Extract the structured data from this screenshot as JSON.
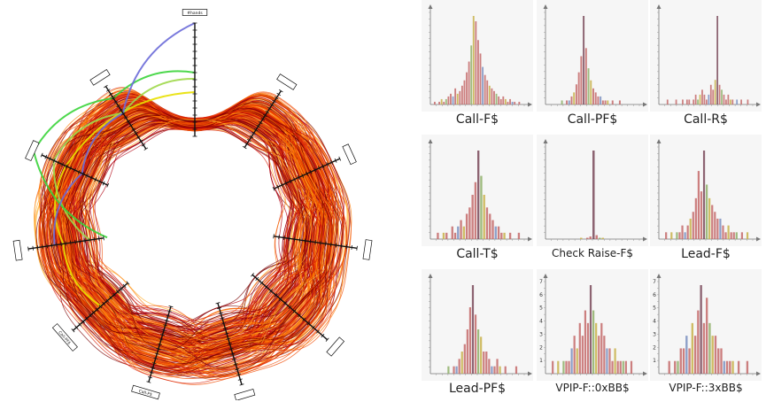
{
  "chart_data": [
    {
      "type": "parallel-coordinates-radial",
      "axes": [
        {
          "label": "#hands"
        },
        {
          "label": ""
        },
        {
          "label": ""
        },
        {
          "label": ""
        },
        {
          "label": ""
        },
        {
          "label": ""
        },
        {
          "label": "Call-F$"
        },
        {
          "label": "Call-PF$"
        },
        {
          "label": ""
        },
        {
          "label": ""
        },
        {
          "label": ""
        }
      ],
      "colors": [
        "#7a0000",
        "#b00010",
        "#d81e05",
        "#f04a00",
        "#ff7a00",
        "#ffae2a",
        "#e8e000",
        "#9fd84a",
        "#3ad43a",
        "#6a6ad8"
      ]
    },
    {
      "type": "histogram-grid",
      "bar_color": "#c46a6a",
      "accent_colors": [
        "#c8b24a",
        "#8fb06a",
        "#7a8fc0",
        "#7a4a5a"
      ],
      "panels": [
        {
          "title": "Call-F$",
          "yticks": [],
          "values": [
            1,
            0,
            1,
            2,
            1,
            2,
            3,
            4,
            3,
            6,
            4,
            5,
            7,
            9,
            12,
            16,
            22,
            33,
            31,
            24,
            19,
            14,
            11,
            9,
            7,
            6,
            5,
            4,
            3,
            2,
            3,
            2,
            1,
            2,
            1,
            1,
            0,
            1
          ]
        },
        {
          "title": "Call-PF$",
          "yticks": [],
          "values": [
            0,
            0,
            0,
            0,
            0,
            1,
            0,
            1,
            1,
            2,
            3,
            5,
            8,
            12,
            22,
            14,
            9,
            6,
            4,
            3,
            2,
            2,
            1,
            1,
            1,
            0,
            1,
            0,
            0,
            1,
            0,
            0,
            0,
            0,
            0,
            0
          ]
        },
        {
          "title": "Call-R$",
          "yticks": [],
          "values": [
            0,
            0,
            1,
            0,
            0,
            0,
            1,
            0,
            0,
            1,
            0,
            1,
            1,
            0,
            1,
            2,
            1,
            2,
            3,
            2,
            1,
            2,
            4,
            3,
            5,
            18,
            4,
            3,
            2,
            1,
            2,
            1,
            1,
            0,
            1,
            0,
            1,
            0,
            0,
            1
          ]
        },
        {
          "title": "Call-T$",
          "yticks": [],
          "values": [
            0,
            1,
            0,
            1,
            1,
            0,
            2,
            1,
            2,
            3,
            2,
            4,
            5,
            7,
            9,
            14,
            10,
            7,
            5,
            4,
            3,
            2,
            2,
            1,
            1,
            0,
            1,
            0,
            0,
            1
          ]
        },
        {
          "title": "Check Raise-F$",
          "yticks": [],
          "values": [
            0,
            0,
            0,
            0,
            0,
            0,
            0,
            0,
            0,
            0,
            1,
            0,
            1,
            2,
            68,
            3,
            1,
            1,
            0,
            0,
            0,
            0,
            0,
            0,
            0,
            0,
            0,
            0
          ]
        },
        {
          "title": "Lead-F$",
          "yticks": [],
          "values": [
            0,
            1,
            0,
            1,
            0,
            1,
            1,
            2,
            1,
            2,
            3,
            4,
            6,
            10,
            7,
            13,
            8,
            6,
            5,
            4,
            3,
            3,
            2,
            1,
            2,
            1,
            1,
            1,
            0,
            1,
            0,
            1
          ]
        },
        {
          "title": "Lead-PF$",
          "yticks": [],
          "values": [
            0,
            0,
            0,
            0,
            0,
            1,
            0,
            1,
            1,
            2,
            3,
            4,
            6,
            9,
            12,
            8,
            6,
            5,
            3,
            3,
            2,
            1,
            1,
            2,
            1,
            0,
            1,
            0,
            0,
            0,
            1,
            0
          ]
        },
        {
          "title": "VPIP-F::0xBB$",
          "yticks": [
            1,
            2,
            3,
            4,
            5,
            6,
            7
          ],
          "values": [
            0,
            1,
            0,
            1,
            0,
            1,
            1,
            1,
            2,
            3,
            2,
            4,
            3,
            5,
            4,
            7,
            5,
            4,
            3,
            4,
            3,
            2,
            2,
            1,
            2,
            1,
            1,
            1,
            1,
            0,
            1,
            0
          ]
        },
        {
          "title": "VPIP-F::3xBB$",
          "yticks": [
            1,
            2,
            3,
            4,
            5,
            6,
            7
          ],
          "values": [
            0,
            0,
            1,
            0,
            1,
            1,
            2,
            2,
            3,
            2,
            4,
            3,
            5,
            7,
            4,
            6,
            4,
            3,
            3,
            2,
            2,
            1,
            1,
            1,
            1,
            0,
            1,
            0,
            0,
            1
          ]
        }
      ]
    }
  ]
}
